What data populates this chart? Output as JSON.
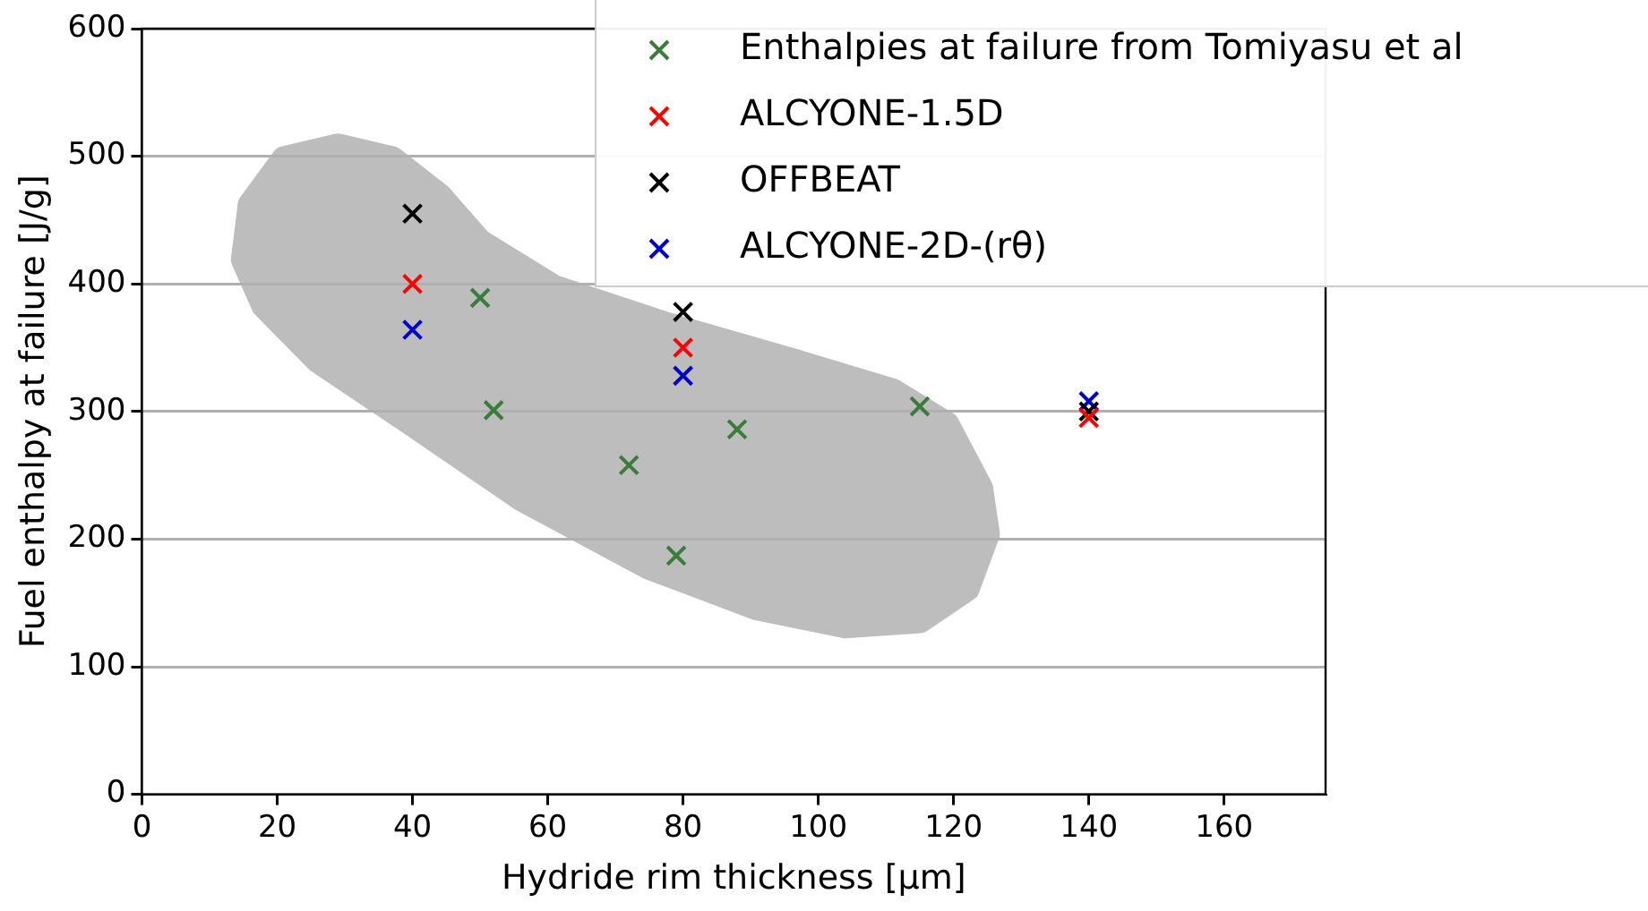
{
  "chart_data": {
    "type": "scatter",
    "xlabel": "Hydride rim thickness [μm]",
    "ylabel": "Fuel enthalpy at failure [J/g]",
    "xlim": [
      0,
      175
    ],
    "xticks": [
      0,
      20,
      40,
      60,
      80,
      100,
      120,
      140,
      160
    ],
    "ylim": [
      0,
      600
    ],
    "yticks": [
      0,
      100,
      200,
      300,
      400,
      500,
      600
    ],
    "grid": "y",
    "legend": "top right",
    "series": [
      {
        "name": "Enthalpies at failure from Tomiyasu et al",
        "color": "#3a7d3a",
        "marker": "cross",
        "x": [
          50,
          52,
          72,
          79,
          88,
          115
        ],
        "values": [
          389,
          301,
          258,
          187,
          286,
          304
        ]
      },
      {
        "name": "ALCYONE-1.5D",
        "color": "#ff0000",
        "marker": "cross",
        "x": [
          40,
          80,
          140
        ],
        "values": [
          400,
          350,
          295
        ]
      },
      {
        "name": "OFFBEAT",
        "color": "#000000",
        "marker": "cross",
        "x": [
          40,
          80,
          140
        ],
        "values": [
          455,
          378,
          300
        ]
      },
      {
        "name": "ALCYONE-2D-(rθ)",
        "color": "#0000cc",
        "marker": "cross",
        "x": [
          40,
          80,
          140
        ],
        "values": [
          364,
          328,
          308
        ]
      }
    ]
  }
}
